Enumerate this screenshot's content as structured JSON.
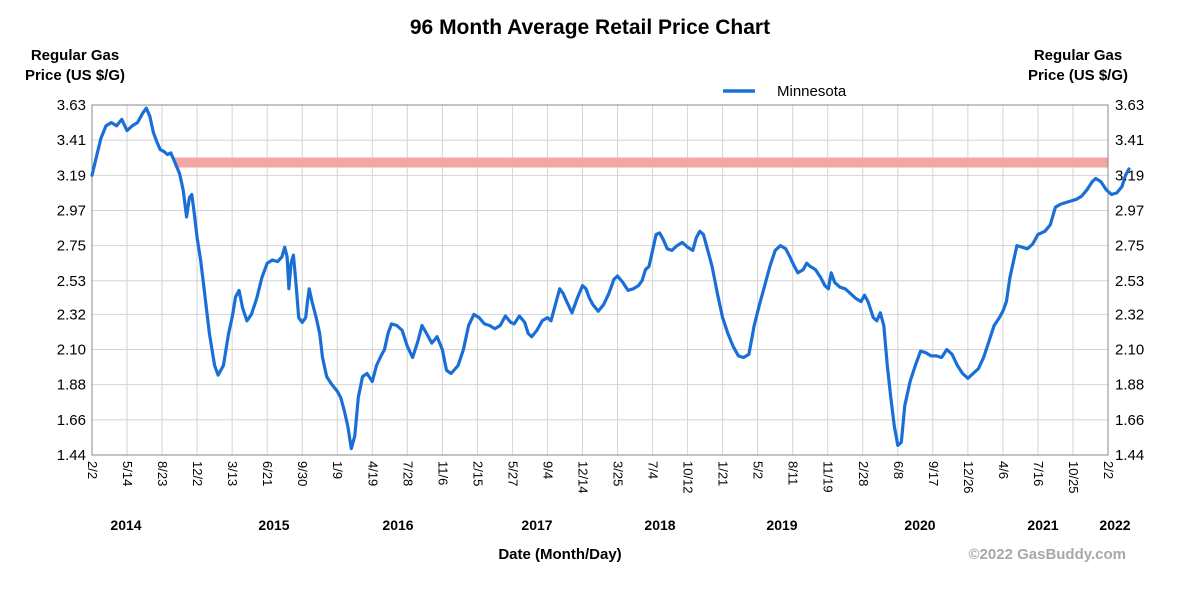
{
  "chart_data": {
    "type": "line",
    "title": "96 Month Average Retail Price Chart",
    "ylabel_left": [
      "Regular Gas",
      "Price (US $/G)"
    ],
    "ylabel_right": [
      "Regular Gas",
      "Price (US $/G)"
    ],
    "xlabel": "Date (Month/Day)",
    "watermark": "©2022 GasBuddy.com",
    "ylim": [
      1.44,
      3.63
    ],
    "y_ticks": [
      "3.63",
      "3.41",
      "3.19",
      "2.97",
      "2.75",
      "2.53",
      "2.32",
      "2.10",
      "1.88",
      "1.66",
      "1.44"
    ],
    "x_ticks": [
      "2/2",
      "5/14",
      "8/23",
      "12/2",
      "3/13",
      "6/21",
      "9/30",
      "1/9",
      "4/19",
      "7/28",
      "11/6",
      "2/15",
      "5/27",
      "9/4",
      "12/14",
      "3/25",
      "7/4",
      "10/12",
      "1/21",
      "5/2",
      "8/11",
      "11/19",
      "2/28",
      "6/8",
      "9/17",
      "12/26",
      "4/6",
      "7/16",
      "10/25",
      "2/2"
    ],
    "years": [
      {
        "label": "2014",
        "at_tick": 1
      },
      {
        "label": "2015",
        "at_tick": 5.5
      },
      {
        "label": "2016",
        "at_tick": 9.5
      },
      {
        "label": "2017",
        "at_tick": 14
      },
      {
        "label": "2018",
        "at_tick": 17.5
      },
      {
        "label": "2019",
        "at_tick": 22
      },
      {
        "label": "2020",
        "at_tick": 26
      },
      {
        "label": "2021",
        "at_tick": 30.5
      },
      {
        "label": "2022",
        "at_tick": 32.5
      }
    ],
    "grid": true,
    "legend": {
      "position": "top-center"
    },
    "reference_line": {
      "value": 3.27,
      "color": "#f4a6a3"
    },
    "series": [
      {
        "name": "Minnesota",
        "color": "#1a6fd6",
        "points": [
          [
            0.0,
            3.19
          ],
          [
            0.12,
            3.3
          ],
          [
            0.25,
            3.42
          ],
          [
            0.4,
            3.5
          ],
          [
            0.55,
            3.52
          ],
          [
            0.7,
            3.5
          ],
          [
            0.85,
            3.54
          ],
          [
            1.0,
            3.47
          ],
          [
            1.15,
            3.5
          ],
          [
            1.3,
            3.52
          ],
          [
            1.45,
            3.58
          ],
          [
            1.55,
            3.61
          ],
          [
            1.65,
            3.56
          ],
          [
            1.75,
            3.46
          ],
          [
            1.85,
            3.4
          ],
          [
            1.95,
            3.35
          ],
          [
            2.05,
            3.34
          ],
          [
            2.15,
            3.32
          ],
          [
            2.25,
            3.33
          ],
          [
            2.35,
            3.28
          ],
          [
            2.5,
            3.2
          ],
          [
            2.6,
            3.1
          ],
          [
            2.7,
            2.93
          ],
          [
            2.78,
            3.05
          ],
          [
            2.85,
            3.07
          ],
          [
            2.92,
            2.95
          ],
          [
            3.0,
            2.8
          ],
          [
            3.1,
            2.66
          ],
          [
            3.2,
            2.48
          ],
          [
            3.35,
            2.2
          ],
          [
            3.5,
            2.0
          ],
          [
            3.6,
            1.94
          ],
          [
            3.75,
            2.0
          ],
          [
            3.9,
            2.2
          ],
          [
            4.0,
            2.3
          ],
          [
            4.1,
            2.43
          ],
          [
            4.2,
            2.47
          ],
          [
            4.3,
            2.36
          ],
          [
            4.42,
            2.28
          ],
          [
            4.55,
            2.32
          ],
          [
            4.7,
            2.42
          ],
          [
            4.85,
            2.55
          ],
          [
            5.0,
            2.64
          ],
          [
            5.15,
            2.66
          ],
          [
            5.3,
            2.65
          ],
          [
            5.42,
            2.68
          ],
          [
            5.5,
            2.74
          ],
          [
            5.57,
            2.68
          ],
          [
            5.62,
            2.48
          ],
          [
            5.68,
            2.64
          ],
          [
            5.75,
            2.69
          ],
          [
            5.82,
            2.52
          ],
          [
            5.9,
            2.3
          ],
          [
            6.0,
            2.27
          ],
          [
            6.1,
            2.3
          ],
          [
            6.15,
            2.4
          ],
          [
            6.2,
            2.48
          ],
          [
            6.28,
            2.4
          ],
          [
            6.4,
            2.3
          ],
          [
            6.5,
            2.2
          ],
          [
            6.58,
            2.05
          ],
          [
            6.7,
            1.93
          ],
          [
            6.85,
            1.88
          ],
          [
            7.0,
            1.84
          ],
          [
            7.1,
            1.8
          ],
          [
            7.2,
            1.72
          ],
          [
            7.3,
            1.62
          ],
          [
            7.4,
            1.48
          ],
          [
            7.5,
            1.56
          ],
          [
            7.6,
            1.8
          ],
          [
            7.72,
            1.93
          ],
          [
            7.85,
            1.95
          ],
          [
            8.0,
            1.9
          ],
          [
            8.12,
            2.0
          ],
          [
            8.25,
            2.06
          ],
          [
            8.35,
            2.1
          ],
          [
            8.45,
            2.2
          ],
          [
            8.55,
            2.26
          ],
          [
            8.7,
            2.25
          ],
          [
            8.85,
            2.22
          ],
          [
            9.0,
            2.12
          ],
          [
            9.15,
            2.05
          ],
          [
            9.3,
            2.15
          ],
          [
            9.42,
            2.25
          ],
          [
            9.55,
            2.2
          ],
          [
            9.7,
            2.14
          ],
          [
            9.85,
            2.18
          ],
          [
            10.0,
            2.1
          ],
          [
            10.12,
            1.97
          ],
          [
            10.25,
            1.95
          ],
          [
            10.45,
            2.0
          ],
          [
            10.6,
            2.1
          ],
          [
            10.75,
            2.25
          ],
          [
            10.9,
            2.32
          ],
          [
            11.05,
            2.3
          ],
          [
            11.2,
            2.26
          ],
          [
            11.35,
            2.25
          ],
          [
            11.5,
            2.23
          ],
          [
            11.65,
            2.25
          ],
          [
            11.8,
            2.31
          ],
          [
            11.95,
            2.27
          ],
          [
            12.05,
            2.26
          ],
          [
            12.2,
            2.31
          ],
          [
            12.35,
            2.27
          ],
          [
            12.45,
            2.2
          ],
          [
            12.55,
            2.18
          ],
          [
            12.7,
            2.22
          ],
          [
            12.85,
            2.28
          ],
          [
            13.0,
            2.3
          ],
          [
            13.1,
            2.28
          ],
          [
            13.25,
            2.4
          ],
          [
            13.35,
            2.48
          ],
          [
            13.45,
            2.45
          ],
          [
            13.55,
            2.4
          ],
          [
            13.7,
            2.33
          ],
          [
            13.85,
            2.42
          ],
          [
            14.0,
            2.5
          ],
          [
            14.1,
            2.48
          ],
          [
            14.2,
            2.42
          ],
          [
            14.3,
            2.38
          ],
          [
            14.45,
            2.34
          ],
          [
            14.6,
            2.38
          ],
          [
            14.75,
            2.45
          ],
          [
            14.9,
            2.54
          ],
          [
            15.0,
            2.56
          ],
          [
            15.15,
            2.52
          ],
          [
            15.3,
            2.47
          ],
          [
            15.45,
            2.48
          ],
          [
            15.6,
            2.5
          ],
          [
            15.7,
            2.53
          ],
          [
            15.8,
            2.6
          ],
          [
            15.9,
            2.62
          ],
          [
            16.0,
            2.72
          ],
          [
            16.1,
            2.82
          ],
          [
            16.2,
            2.83
          ],
          [
            16.3,
            2.79
          ],
          [
            16.42,
            2.73
          ],
          [
            16.55,
            2.72
          ],
          [
            16.7,
            2.75
          ],
          [
            16.85,
            2.77
          ],
          [
            17.0,
            2.74
          ],
          [
            17.15,
            2.72
          ],
          [
            17.25,
            2.8
          ],
          [
            17.35,
            2.84
          ],
          [
            17.45,
            2.82
          ],
          [
            17.55,
            2.74
          ],
          [
            17.7,
            2.62
          ],
          [
            17.85,
            2.45
          ],
          [
            18.0,
            2.3
          ],
          [
            18.15,
            2.2
          ],
          [
            18.3,
            2.12
          ],
          [
            18.45,
            2.06
          ],
          [
            18.6,
            2.05
          ],
          [
            18.75,
            2.07
          ],
          [
            18.9,
            2.25
          ],
          [
            19.05,
            2.38
          ],
          [
            19.2,
            2.5
          ],
          [
            19.35,
            2.62
          ],
          [
            19.5,
            2.72
          ],
          [
            19.65,
            2.75
          ],
          [
            19.8,
            2.73
          ],
          [
            19.92,
            2.68
          ],
          [
            20.05,
            2.62
          ],
          [
            20.15,
            2.58
          ],
          [
            20.3,
            2.6
          ],
          [
            20.4,
            2.64
          ],
          [
            20.5,
            2.62
          ],
          [
            20.65,
            2.6
          ],
          [
            20.8,
            2.55
          ],
          [
            20.92,
            2.5
          ],
          [
            21.02,
            2.48
          ],
          [
            21.1,
            2.58
          ],
          [
            21.2,
            2.52
          ],
          [
            21.35,
            2.49
          ],
          [
            21.5,
            2.48
          ],
          [
            21.65,
            2.45
          ],
          [
            21.8,
            2.42
          ],
          [
            21.95,
            2.4
          ],
          [
            22.05,
            2.44
          ],
          [
            22.15,
            2.4
          ],
          [
            22.3,
            2.3
          ],
          [
            22.4,
            2.28
          ],
          [
            22.5,
            2.33
          ],
          [
            22.6,
            2.25
          ],
          [
            22.7,
            2.0
          ],
          [
            22.8,
            1.8
          ],
          [
            22.9,
            1.62
          ],
          [
            23.0,
            1.5
          ],
          [
            23.1,
            1.52
          ],
          [
            23.2,
            1.75
          ],
          [
            23.35,
            1.9
          ],
          [
            23.5,
            2.0
          ],
          [
            23.65,
            2.09
          ],
          [
            23.8,
            2.08
          ],
          [
            23.95,
            2.06
          ],
          [
            24.1,
            2.06
          ],
          [
            24.25,
            2.05
          ],
          [
            24.4,
            2.1
          ],
          [
            24.55,
            2.07
          ],
          [
            24.7,
            2.0
          ],
          [
            24.85,
            1.95
          ],
          [
            25.0,
            1.92
          ],
          [
            25.15,
            1.95
          ],
          [
            25.3,
            1.98
          ],
          [
            25.45,
            2.05
          ],
          [
            25.6,
            2.15
          ],
          [
            25.75,
            2.25
          ],
          [
            25.9,
            2.3
          ],
          [
            26.0,
            2.34
          ],
          [
            26.1,
            2.4
          ],
          [
            26.2,
            2.55
          ],
          [
            26.3,
            2.65
          ],
          [
            26.4,
            2.75
          ],
          [
            26.55,
            2.74
          ],
          [
            26.7,
            2.73
          ],
          [
            26.85,
            2.76
          ],
          [
            27.0,
            2.82
          ],
          [
            27.2,
            2.84
          ],
          [
            27.35,
            2.88
          ],
          [
            27.5,
            2.99
          ],
          [
            27.65,
            3.01
          ],
          [
            27.8,
            3.02
          ],
          [
            27.95,
            3.03
          ],
          [
            28.1,
            3.04
          ],
          [
            28.25,
            3.06
          ],
          [
            28.4,
            3.1
          ],
          [
            28.55,
            3.15
          ],
          [
            28.65,
            3.17
          ],
          [
            28.8,
            3.15
          ],
          [
            28.95,
            3.1
          ],
          [
            29.1,
            3.07
          ],
          [
            29.25,
            3.08
          ],
          [
            29.4,
            3.12
          ],
          [
            29.5,
            3.19
          ],
          [
            29.6,
            3.23
          ]
        ]
      }
    ]
  }
}
